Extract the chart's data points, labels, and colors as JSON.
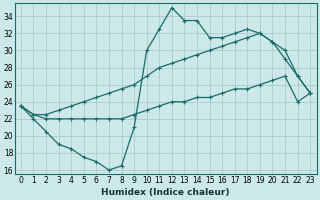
{
  "xlabel": "Humidex (Indice chaleur)",
  "background_color": "#cce8e8",
  "grid_color": "#aacccc",
  "line_color": "#1a6b6b",
  "xlim": [
    -0.5,
    23.5
  ],
  "ylim": [
    15.5,
    35.5
  ],
  "yticks": [
    16,
    18,
    20,
    22,
    24,
    26,
    28,
    30,
    32,
    34
  ],
  "xticks": [
    0,
    1,
    2,
    3,
    4,
    5,
    6,
    7,
    8,
    9,
    10,
    11,
    12,
    13,
    14,
    15,
    16,
    17,
    18,
    19,
    20,
    21,
    22,
    23
  ],
  "line1_x": [
    0,
    1,
    2,
    3,
    4,
    5,
    6,
    7,
    8,
    9,
    10,
    11,
    12,
    13,
    14,
    15,
    16,
    17,
    18,
    19,
    20,
    21,
    22,
    23
  ],
  "line1_y": [
    23.5,
    22,
    20.5,
    19,
    18.5,
    17.5,
    17,
    16,
    16.5,
    21,
    30,
    32.5,
    35,
    33.5,
    33.5,
    31.5,
    31.5,
    32,
    32.5,
    32,
    31,
    29,
    27,
    25
  ],
  "line2_x": [
    0,
    1,
    2,
    3,
    4,
    5,
    6,
    7,
    8,
    9,
    10,
    11,
    12,
    13,
    14,
    15,
    16,
    17,
    18,
    19,
    20,
    21,
    22,
    23
  ],
  "line2_y": [
    23.5,
    22.5,
    22.5,
    23.0,
    23.5,
    24.0,
    24.5,
    25.0,
    25.5,
    26.0,
    27.0,
    28.0,
    28.5,
    29.0,
    29.5,
    30.0,
    30.5,
    31.0,
    31.5,
    32.0,
    31.0,
    30.0,
    27.0,
    25.0
  ],
  "line3_x": [
    0,
    1,
    2,
    3,
    4,
    5,
    6,
    7,
    8,
    9,
    10,
    11,
    12,
    13,
    14,
    15,
    16,
    17,
    18,
    19,
    20,
    21,
    22,
    23
  ],
  "line3_y": [
    23.5,
    22.5,
    22.0,
    22.0,
    22.0,
    22.0,
    22.0,
    22.0,
    22.0,
    22.5,
    23.0,
    23.5,
    24.0,
    24.0,
    24.5,
    24.5,
    25.0,
    25.5,
    25.5,
    26.0,
    26.5,
    27.0,
    24.0,
    25.0
  ]
}
